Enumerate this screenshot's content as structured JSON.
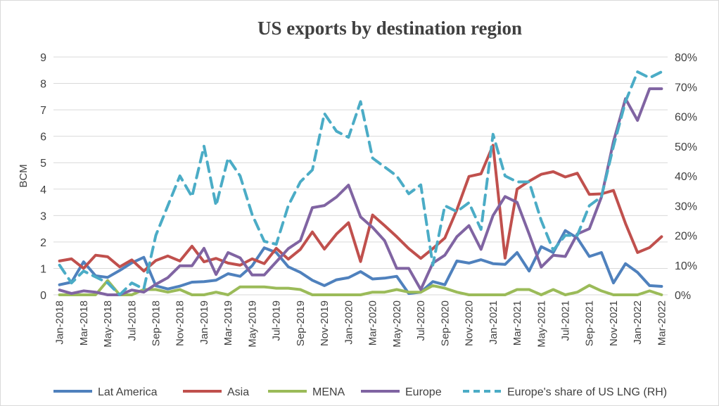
{
  "chart_data": {
    "type": "line",
    "title": "US exports by destination region",
    "ylabel": "BCM",
    "y2label": "",
    "ylim": [
      0,
      9
    ],
    "yticks": [
      "0",
      "1",
      "2",
      "3",
      "4",
      "5",
      "6",
      "7",
      "8",
      "9"
    ],
    "y2lim": [
      0,
      80
    ],
    "y2ticks": [
      "0%",
      "10%",
      "20%",
      "30%",
      "40%",
      "50%",
      "60%",
      "70%",
      "80%"
    ],
    "grid": true,
    "legend_position": "bottom",
    "x": [
      "Jan-2018",
      "Feb-2018",
      "Mar-2018",
      "Apr-2018",
      "May-2018",
      "Jun-2018",
      "Jul-2018",
      "Aug-2018",
      "Sep-2018",
      "Oct-2018",
      "Nov-2018",
      "Dec-2018",
      "Jan-2019",
      "Feb-2019",
      "Mar-2019",
      "Apr-2019",
      "May-2019",
      "Jun-2019",
      "Jul-2019",
      "Aug-2019",
      "Sep-2019",
      "Oct-2019",
      "Nov-2019",
      "Dec-2019",
      "Jan-2020",
      "Feb-2020",
      "Mar-2020",
      "Apr-2020",
      "May-2020",
      "Jun-2020",
      "Jul-2020",
      "Aug-2020",
      "Sep-2020",
      "Oct-2020",
      "Nov-2020",
      "Dec-2020",
      "Jan-2021",
      "Feb-2021",
      "Mar-2021",
      "Apr-2021",
      "May-2021",
      "Jun-2021",
      "Jul-2021",
      "Aug-2021",
      "Sep-2021",
      "Oct-2021",
      "Nov-2021",
      "Dec-2021",
      "Jan-2022",
      "Feb-2022",
      "Mar-2022"
    ],
    "x_tick_labels": [
      "Jan-2018",
      "Mar-2018",
      "May-2018",
      "Jul-2018",
      "Sep-2018",
      "Nov-2018",
      "Jan-2019",
      "Mar-2019",
      "May-2019",
      "Jul-2019",
      "Sep-2019",
      "Nov-2019",
      "Jan-2020",
      "Mar-2020",
      "May-2020",
      "Jul-2020",
      "Sep-2020",
      "Nov-2020",
      "Jan-2021",
      "Mar-2021",
      "May-2021",
      "Jul-2021",
      "Sep-2021",
      "Nov-2021",
      "Jan-2022",
      "Mar-2022"
    ],
    "series": [
      {
        "name": "Lat America",
        "color": "#4f81bd",
        "axis": "left",
        "dashed": false,
        "values": [
          0.38,
          0.48,
          1.25,
          0.72,
          0.66,
          0.92,
          1.21,
          1.42,
          0.34,
          0.22,
          0.33,
          0.48,
          0.5,
          0.55,
          0.8,
          0.7,
          1.1,
          1.78,
          1.6,
          1.06,
          0.85,
          0.55,
          0.35,
          0.57,
          0.65,
          0.88,
          0.6,
          0.63,
          0.7,
          0.05,
          0.1,
          0.5,
          0.38,
          1.28,
          1.2,
          1.33,
          1.18,
          1.15,
          1.6,
          0.9,
          1.82,
          1.6,
          2.43,
          2.15,
          1.45,
          1.6,
          0.45,
          1.18,
          0.85,
          0.35,
          0.32
        ]
      },
      {
        "name": "Asia",
        "color": "#c0504d",
        "axis": "left",
        "dashed": false,
        "values": [
          1.28,
          1.36,
          1.0,
          1.5,
          1.44,
          1.06,
          1.32,
          0.9,
          1.3,
          1.47,
          1.28,
          1.84,
          1.25,
          1.38,
          1.2,
          1.12,
          1.36,
          1.18,
          1.76,
          1.35,
          1.72,
          2.38,
          1.73,
          2.3,
          2.73,
          1.26,
          3.02,
          2.62,
          2.2,
          1.75,
          1.38,
          1.75,
          2.15,
          3.22,
          4.48,
          4.58,
          5.66,
          1.39,
          4.0,
          4.3,
          4.56,
          4.66,
          4.46,
          4.6,
          3.8,
          3.82,
          3.95,
          2.7,
          1.6,
          1.79,
          2.2
        ]
      },
      {
        "name": "MENA",
        "color": "#9bbb59",
        "axis": "left",
        "dashed": false,
        "values": [
          0.0,
          0.0,
          0.0,
          0.0,
          0.54,
          0.0,
          0.0,
          0.2,
          0.2,
          0.1,
          0.2,
          0.0,
          0.0,
          0.1,
          0.0,
          0.3,
          0.3,
          0.3,
          0.25,
          0.25,
          0.2,
          0.0,
          0.0,
          0.0,
          0.0,
          0.0,
          0.1,
          0.1,
          0.2,
          0.1,
          0.1,
          0.35,
          0.25,
          0.1,
          0.0,
          0.0,
          0.0,
          0.0,
          0.2,
          0.2,
          0.0,
          0.2,
          0.0,
          0.1,
          0.36,
          0.15,
          0.0,
          0.0,
          0.0,
          0.15,
          0.0
        ]
      },
      {
        "name": "Europe",
        "color": "#8064a2",
        "axis": "left",
        "dashed": false,
        "values": [
          0.18,
          0.05,
          0.15,
          0.1,
          0.0,
          0.0,
          0.18,
          0.1,
          0.4,
          0.65,
          1.1,
          1.1,
          1.76,
          0.77,
          1.6,
          1.4,
          0.75,
          0.75,
          1.25,
          1.75,
          2.05,
          3.3,
          3.38,
          3.7,
          4.15,
          2.95,
          2.55,
          2.05,
          1.0,
          1.0,
          0.2,
          1.2,
          1.5,
          2.2,
          2.62,
          1.72,
          3.0,
          3.72,
          3.5,
          2.3,
          1.05,
          1.5,
          1.45,
          2.3,
          2.5,
          3.7,
          5.8,
          7.42,
          6.6,
          7.8,
          7.8
        ]
      },
      {
        "name": "Europe's share of US LNG (RH)",
        "color": "#4bacc6",
        "axis": "right",
        "dashed": true,
        "values": [
          10,
          4,
          8,
          6,
          4,
          0,
          4,
          2,
          20,
          30,
          40,
          33,
          50,
          30,
          46,
          40,
          27,
          18,
          17,
          30,
          38,
          42,
          61,
          55,
          53,
          65,
          46,
          43,
          40,
          34,
          37,
          10,
          30,
          28,
          31,
          22,
          54,
          40,
          38,
          38,
          25,
          15,
          20,
          20,
          30,
          33,
          50,
          65,
          75,
          73,
          75
        ]
      }
    ]
  }
}
